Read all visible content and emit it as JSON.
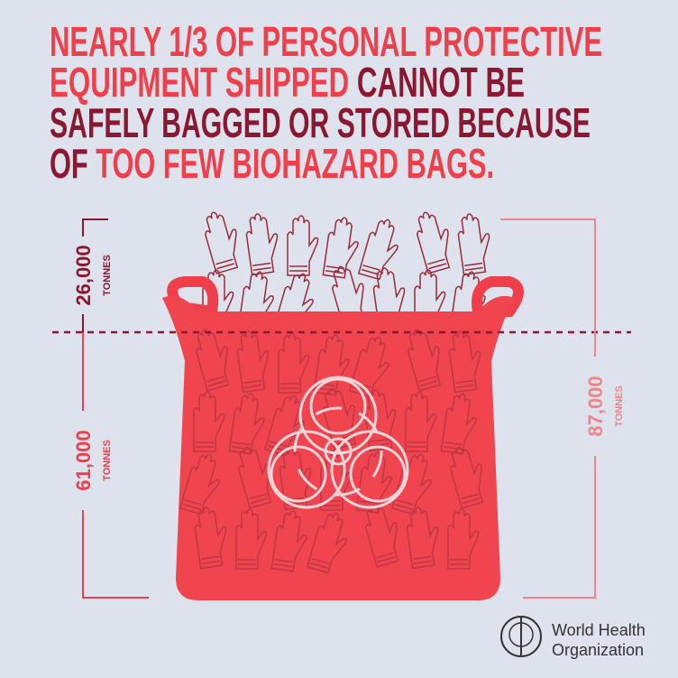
{
  "headline": {
    "lines": [
      [
        "NEARLY 1/3 OF PERSONAL PROTECTIVE"
      ],
      [
        "EQUIPMENT SHIPPED",
        " CANNOT BE"
      ],
      [
        "SAFELY BAGGED OR STORED BECAUSE"
      ],
      [
        "OF ",
        "TOO FEW BIOHAZARD BAGS."
      ]
    ]
  },
  "labels": {
    "top_left": {
      "amount": "26,000",
      "unit": "TONNES"
    },
    "bottom_left": {
      "amount": "61,000",
      "unit": "TONNES"
    },
    "right": {
      "amount": "87,000",
      "unit": "TONNES"
    }
  },
  "logo": {
    "line1": "World Health",
    "line2": "Organization"
  }
}
